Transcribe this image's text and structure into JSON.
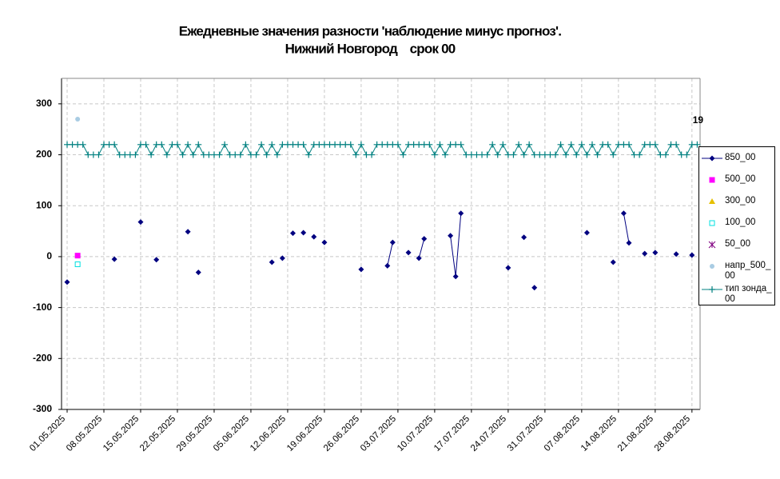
{
  "chart_data": {
    "type": "line",
    "title": "Ежедневные значения разности 'наблюдение минус прогноз'.",
    "subtitle": "Нижний Новгород    срок 00",
    "annotation": "19",
    "categories": [
      "01.05.2025",
      null,
      null,
      null,
      null,
      null,
      null,
      "08.05.2025",
      null,
      null,
      null,
      null,
      null,
      null,
      "15.05.2025",
      null,
      null,
      null,
      null,
      null,
      null,
      "22.05.2025",
      null,
      null,
      null,
      null,
      null,
      null,
      "29.05.2025",
      null,
      null,
      null,
      null,
      null,
      null,
      "05.06.2025",
      null,
      null,
      null,
      null,
      null,
      null,
      "12.06.2025",
      null,
      null,
      null,
      null,
      null,
      null,
      "19.06.2025",
      null,
      null,
      null,
      null,
      null,
      null,
      "26.06.2025",
      null,
      null,
      null,
      null,
      null,
      null,
      "03.07.2025",
      null,
      null,
      null,
      null,
      null,
      null,
      "10.07.2025",
      null,
      null,
      null,
      null,
      null,
      null,
      "17.07.2025",
      null,
      null,
      null,
      null,
      null,
      null,
      "24.07.2025",
      null,
      null,
      null,
      null,
      null,
      null,
      "31.07.2025",
      null,
      null,
      null,
      null,
      null,
      null,
      "07.08.2025",
      null,
      null,
      null,
      null,
      null,
      null,
      "14.08.2025",
      null,
      null,
      null,
      null,
      null,
      null,
      "21.08.2025",
      null,
      null,
      null,
      null,
      null,
      null,
      "28.08.2025",
      null,
      null
    ],
    "ylim": [
      -300,
      350
    ],
    "yticks": [
      -300,
      -200,
      -100,
      0,
      100,
      200,
      300
    ],
    "grid": true,
    "series": [
      {
        "name": "850_00",
        "color": "#000080",
        "marker": "diamond",
        "line": true,
        "values": [
          -50,
          null,
          null,
          null,
          null,
          null,
          null,
          null,
          null,
          -5,
          null,
          null,
          null,
          null,
          68,
          null,
          null,
          -6,
          null,
          null,
          null,
          null,
          null,
          49,
          null,
          -31,
          null,
          null,
          null,
          null,
          null,
          null,
          null,
          null,
          null,
          null,
          null,
          null,
          null,
          -11,
          null,
          -3,
          null,
          46,
          null,
          47,
          null,
          39,
          null,
          28,
          null,
          null,
          null,
          null,
          null,
          null,
          -25,
          null,
          null,
          null,
          null,
          -18,
          28,
          null,
          null,
          8,
          null,
          -3,
          35,
          null,
          null,
          null,
          null,
          41,
          -39,
          85,
          null,
          null,
          null,
          null,
          null,
          null,
          null,
          null,
          -22,
          null,
          null,
          38,
          null,
          -61,
          null,
          null,
          null,
          null,
          null,
          null,
          null,
          null,
          null,
          47,
          null,
          null,
          null,
          null,
          -11,
          null,
          85,
          27,
          null,
          null,
          6,
          null,
          8,
          null,
          null,
          null,
          5,
          null,
          null,
          3,
          null,
          null
        ]
      },
      {
        "name": "500_00",
        "color": "#ff00ff",
        "marker": "square",
        "line": false,
        "values": [
          null,
          null,
          2,
          null,
          null,
          null,
          null,
          null,
          null,
          null,
          null,
          null,
          null,
          null,
          null,
          null,
          null,
          null,
          null,
          null,
          null,
          null,
          null,
          null,
          null,
          null,
          null,
          null,
          null,
          null,
          null,
          null,
          null,
          null,
          null,
          null,
          null,
          null,
          null,
          null,
          null,
          null,
          null,
          null,
          null,
          null,
          null,
          null,
          null,
          null,
          null,
          null,
          null,
          null,
          null,
          null,
          null,
          null,
          null,
          null,
          null,
          null,
          null,
          null,
          null,
          null,
          null,
          null,
          null,
          null,
          null,
          null,
          null,
          null,
          null,
          null,
          null,
          null,
          null,
          null,
          null,
          null,
          null,
          null,
          null,
          null,
          null,
          null,
          null,
          null,
          null,
          null,
          null,
          null,
          null,
          null,
          null,
          null,
          null,
          null,
          null,
          null,
          null,
          null,
          null,
          null,
          null,
          null,
          null,
          null,
          null,
          null,
          null,
          null,
          null,
          null,
          null,
          null,
          null,
          null,
          null,
          null
        ]
      },
      {
        "name": "300_00",
        "color": "#e6c000",
        "marker": "triangle",
        "line": false,
        "values": [
          null,
          null,
          null,
          null,
          null,
          null,
          null,
          null,
          null,
          null,
          null,
          null,
          null,
          null,
          null,
          null,
          null,
          null,
          null,
          null,
          null,
          null,
          null,
          null,
          null,
          null,
          null,
          null,
          null,
          null,
          null,
          null,
          null,
          null,
          null,
          null,
          null,
          null,
          null,
          null,
          null,
          null,
          null,
          null,
          null,
          null,
          null,
          null,
          null,
          null,
          null,
          null,
          null,
          null,
          null,
          null,
          null,
          null,
          null,
          null,
          null,
          null,
          null,
          null,
          null,
          null,
          null,
          null,
          null,
          null,
          null,
          null,
          null,
          null,
          null,
          null,
          null,
          null,
          null,
          null,
          null,
          null,
          null,
          null,
          null,
          null,
          null,
          null,
          null,
          null,
          null,
          null,
          null,
          null,
          null,
          null,
          null,
          null,
          null,
          null,
          null,
          null,
          null,
          null,
          null,
          null,
          null,
          null,
          null,
          null,
          null,
          null,
          null,
          null,
          null,
          null,
          null,
          null,
          null,
          null,
          null,
          null
        ]
      },
      {
        "name": "100_00",
        "color": "#00e0e0",
        "marker": "open-square",
        "line": false,
        "values": [
          null,
          null,
          -15,
          null,
          null,
          null,
          null,
          null,
          null,
          null,
          null,
          null,
          null,
          null,
          null,
          null,
          null,
          null,
          null,
          null,
          null,
          null,
          null,
          null,
          null,
          null,
          null,
          null,
          null,
          null,
          null,
          null,
          null,
          null,
          null,
          null,
          null,
          null,
          null,
          null,
          null,
          null,
          null,
          null,
          null,
          null,
          null,
          null,
          null,
          null,
          null,
          null,
          null,
          null,
          null,
          null,
          null,
          null,
          null,
          null,
          null,
          null,
          null,
          null,
          null,
          null,
          null,
          null,
          null,
          null,
          null,
          null,
          null,
          null,
          null,
          null,
          null,
          null,
          null,
          null,
          null,
          null,
          null,
          null,
          null,
          null,
          null,
          null,
          null,
          null,
          null,
          null,
          null,
          null,
          null,
          null,
          null,
          null,
          null,
          null,
          null,
          null,
          null,
          null,
          null,
          null,
          null,
          null,
          null,
          null,
          null,
          null,
          null,
          null,
          null,
          null,
          null,
          null,
          null,
          null,
          null,
          null
        ]
      },
      {
        "name": "50_00",
        "color": "#800080",
        "marker": "star",
        "line": false,
        "values": [
          null,
          null,
          null,
          null,
          null,
          null,
          null,
          null,
          null,
          null,
          null,
          null,
          null,
          null,
          null,
          null,
          null,
          null,
          null,
          null,
          null,
          null,
          null,
          null,
          null,
          null,
          null,
          null,
          null,
          null,
          null,
          null,
          null,
          null,
          null,
          null,
          null,
          null,
          null,
          null,
          null,
          null,
          null,
          null,
          null,
          null,
          null,
          null,
          null,
          null,
          null,
          null,
          null,
          null,
          null,
          null,
          null,
          null,
          null,
          null,
          null,
          null,
          null,
          null,
          null,
          null,
          null,
          null,
          null,
          null,
          null,
          null,
          null,
          null,
          null,
          null,
          null,
          null,
          null,
          null,
          null,
          null,
          null,
          null,
          null,
          null,
          null,
          null,
          null,
          null,
          null,
          null,
          null,
          null,
          null,
          null,
          null,
          null,
          null,
          null,
          null,
          null,
          null,
          null,
          null,
          null,
          null,
          null,
          null,
          null,
          null,
          null,
          null,
          null,
          null,
          null,
          null,
          null,
          null,
          null,
          null,
          null
        ]
      },
      {
        "name": "напр_500_00",
        "color": "#a9cce3",
        "marker": "circle",
        "line": false,
        "values": [
          null,
          null,
          270,
          null,
          null,
          null,
          null,
          null,
          null,
          null,
          null,
          null,
          null,
          null,
          null,
          null,
          null,
          null,
          null,
          null,
          null,
          null,
          null,
          null,
          null,
          null,
          null,
          null,
          null,
          null,
          null,
          null,
          null,
          null,
          null,
          null,
          null,
          null,
          null,
          null,
          null,
          null,
          null,
          null,
          null,
          null,
          null,
          null,
          null,
          null,
          null,
          null,
          null,
          null,
          null,
          null,
          null,
          null,
          null,
          null,
          null,
          null,
          null,
          null,
          null,
          null,
          null,
          null,
          null,
          null,
          null,
          null,
          null,
          null,
          null,
          null,
          null,
          null,
          null,
          null,
          null,
          null,
          null,
          null,
          null,
          null,
          null,
          null,
          null,
          null,
          null,
          null,
          null,
          null,
          null,
          null,
          null,
          null,
          null,
          null,
          null,
          null,
          null,
          null,
          null,
          null,
          null,
          null,
          null,
          null,
          null,
          null,
          null,
          null,
          null,
          null,
          null,
          null,
          null,
          null,
          null,
          null
        ]
      },
      {
        "name": "тип зонда_00",
        "color": "#008080",
        "marker": "plus",
        "line": true,
        "values": [
          220,
          220,
          220,
          220,
          200,
          200,
          200,
          220,
          220,
          220,
          200,
          200,
          200,
          200,
          220,
          220,
          200,
          220,
          220,
          200,
          220,
          220,
          200,
          220,
          200,
          220,
          200,
          200,
          200,
          200,
          220,
          200,
          200,
          200,
          220,
          200,
          200,
          220,
          200,
          220,
          200,
          220,
          220,
          220,
          220,
          220,
          200,
          220,
          220,
          220,
          220,
          220,
          220,
          220,
          220,
          200,
          220,
          200,
          200,
          220,
          220,
          220,
          220,
          220,
          200,
          220,
          220,
          220,
          220,
          220,
          200,
          220,
          200,
          220,
          220,
          220,
          200,
          200,
          200,
          200,
          200,
          220,
          200,
          220,
          200,
          200,
          220,
          200,
          220,
          200,
          200,
          200,
          200,
          200,
          220,
          200,
          220,
          200,
          220,
          200,
          220,
          200,
          220,
          220,
          200,
          220,
          220,
          220,
          200,
          200,
          220,
          220,
          220,
          200,
          200,
          220,
          220,
          200,
          200,
          220,
          220,
          null
        ]
      }
    ]
  }
}
